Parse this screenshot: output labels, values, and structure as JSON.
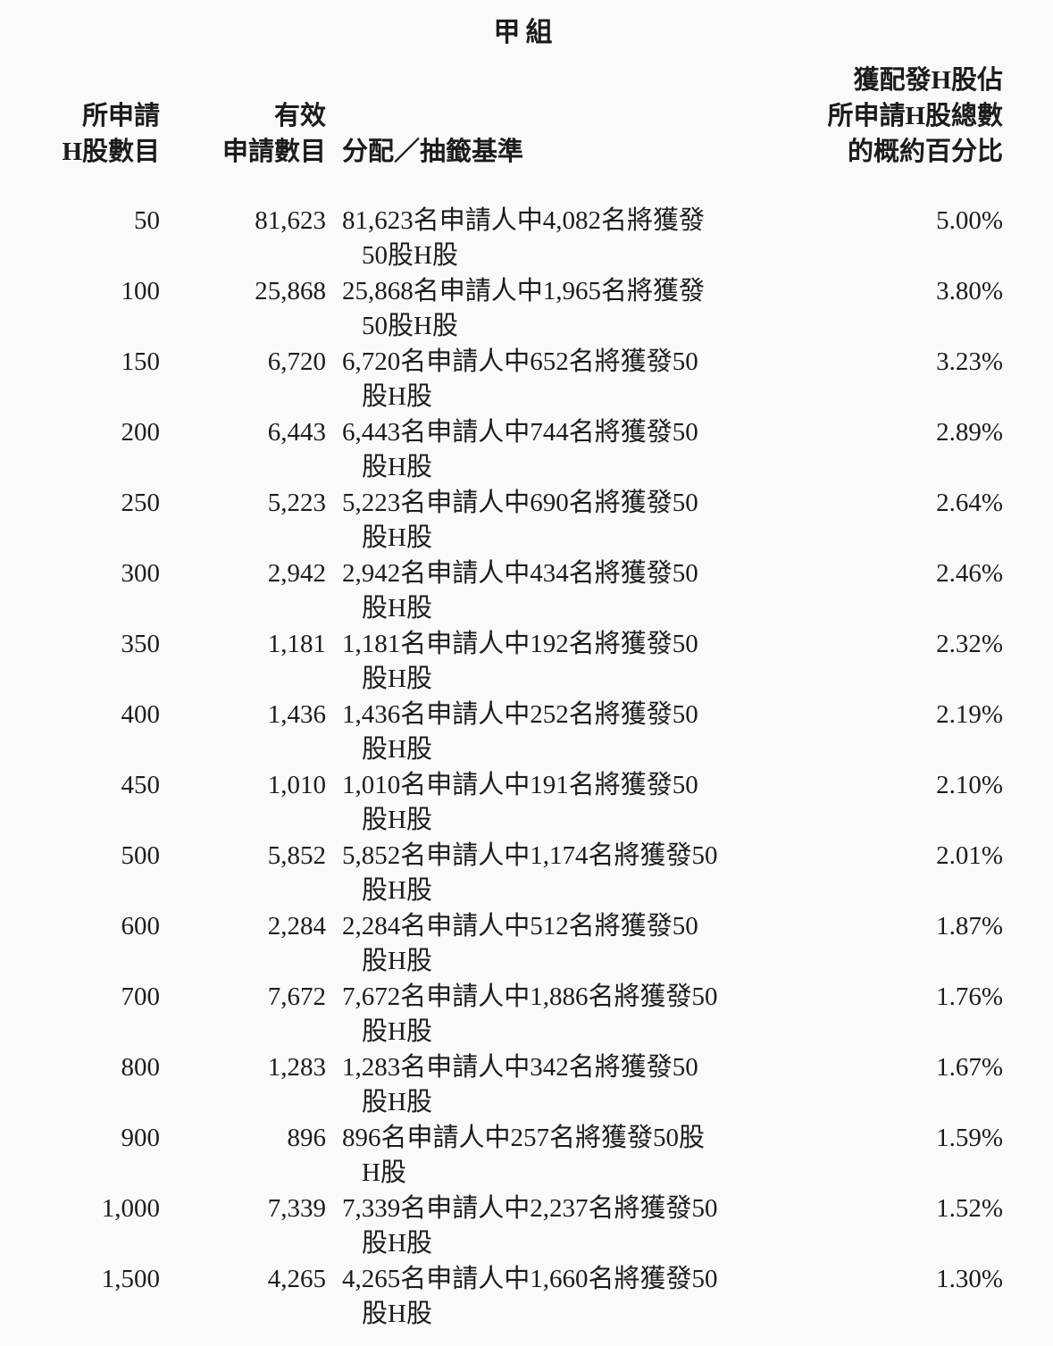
{
  "title": "甲組",
  "columns": {
    "applied": [
      "所申請",
      "H股數目"
    ],
    "valid": [
      "有效",
      "申請數目"
    ],
    "basis": "分配／抽籤基準",
    "percent": [
      "獲配發H股佔",
      "所申請H股總數",
      "的概約百分比"
    ]
  },
  "rows": [
    {
      "applied": "50",
      "valid": "81,623",
      "basis_line1": "81,623名申請人中4,082名將獲發",
      "basis_line2": "50股H股",
      "percent": "5.00%"
    },
    {
      "applied": "100",
      "valid": "25,868",
      "basis_line1": "25,868名申請人中1,965名將獲發",
      "basis_line2": "50股H股",
      "percent": "3.80%"
    },
    {
      "applied": "150",
      "valid": "6,720",
      "basis_line1": "6,720名申請人中652名將獲發50",
      "basis_line2": "股H股",
      "percent": "3.23%"
    },
    {
      "applied": "200",
      "valid": "6,443",
      "basis_line1": "6,443名申請人中744名將獲發50",
      "basis_line2": "股H股",
      "percent": "2.89%"
    },
    {
      "applied": "250",
      "valid": "5,223",
      "basis_line1": "5,223名申請人中690名將獲發50",
      "basis_line2": "股H股",
      "percent": "2.64%"
    },
    {
      "applied": "300",
      "valid": "2,942",
      "basis_line1": "2,942名申請人中434名將獲發50",
      "basis_line2": "股H股",
      "percent": "2.46%"
    },
    {
      "applied": "350",
      "valid": "1,181",
      "basis_line1": "1,181名申請人中192名將獲發50",
      "basis_line2": "股H股",
      "percent": "2.32%"
    },
    {
      "applied": "400",
      "valid": "1,436",
      "basis_line1": "1,436名申請人中252名將獲發50",
      "basis_line2": "股H股",
      "percent": "2.19%"
    },
    {
      "applied": "450",
      "valid": "1,010",
      "basis_line1": "1,010名申請人中191名將獲發50",
      "basis_line2": "股H股",
      "percent": "2.10%"
    },
    {
      "applied": "500",
      "valid": "5,852",
      "basis_line1": "5,852名申請人中1,174名將獲發50",
      "basis_line2": "股H股",
      "percent": "2.01%"
    },
    {
      "applied": "600",
      "valid": "2,284",
      "basis_line1": "2,284名申請人中512名將獲發50",
      "basis_line2": "股H股",
      "percent": "1.87%"
    },
    {
      "applied": "700",
      "valid": "7,672",
      "basis_line1": "7,672名申請人中1,886名將獲發50",
      "basis_line2": "股H股",
      "percent": "1.76%"
    },
    {
      "applied": "800",
      "valid": "1,283",
      "basis_line1": "1,283名申請人中342名將獲發50",
      "basis_line2": "股H股",
      "percent": "1.67%"
    },
    {
      "applied": "900",
      "valid": "896",
      "basis_line1": "896名申請人中257名將獲發50股",
      "basis_line2": "H股",
      "percent": "1.59%"
    },
    {
      "applied": "1,000",
      "valid": "7,339",
      "basis_line1": "7,339名申請人中2,237名將獲發50",
      "basis_line2": "股H股",
      "percent": "1.52%"
    },
    {
      "applied": "1,500",
      "valid": "4,265",
      "basis_line1": "4,265名申請人中1,660名將獲發50",
      "basis_line2": "股H股",
      "percent": "1.30%"
    }
  ]
}
